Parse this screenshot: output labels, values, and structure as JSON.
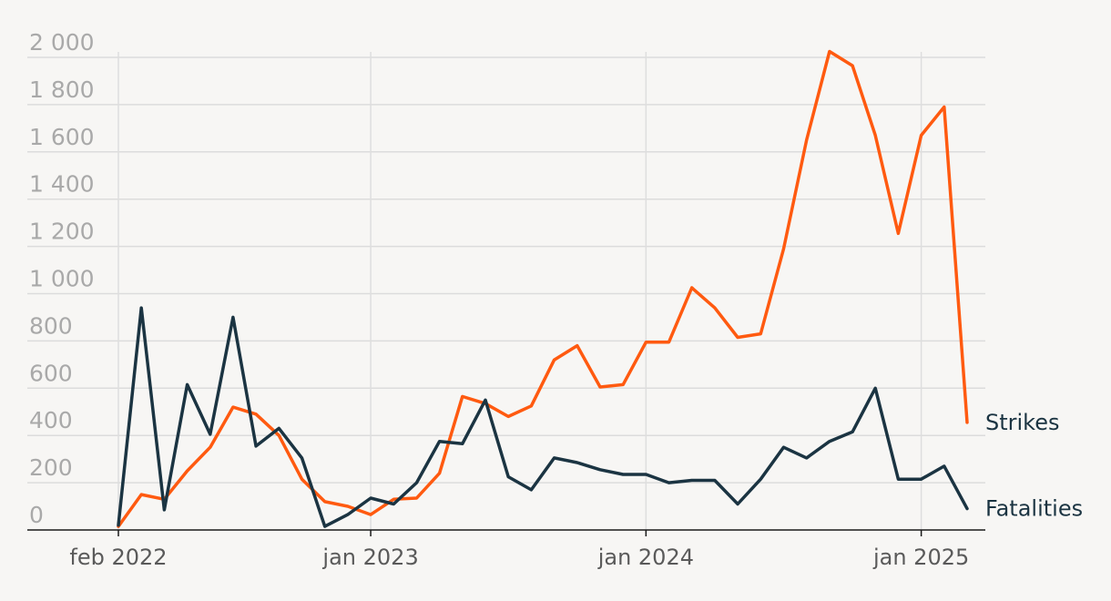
{
  "colors": {
    "background": "#f7f6f4",
    "strikes": "#ff5a10",
    "fatalities": "#1b3442"
  },
  "chart_data": {
    "type": "line",
    "title": "",
    "xlabel": "",
    "ylabel": "",
    "ylim": [
      0,
      2000
    ],
    "yticks": [
      0,
      200,
      400,
      600,
      800,
      1000,
      1200,
      1400,
      1600,
      1800,
      2000
    ],
    "ytick_labels": [
      "0",
      "200",
      "400",
      "600",
      "800",
      "1 000",
      "1 200",
      "1 400",
      "1 600",
      "1 800",
      "2 000"
    ],
    "xticks": [
      {
        "date": "2022-02",
        "label": "feb 2022"
      },
      {
        "date": "2023-01",
        "label": "jan 2023"
      },
      {
        "date": "2024-01",
        "label": "jan 2024"
      },
      {
        "date": "2025-01",
        "label": "jan 2025"
      }
    ],
    "x": [
      "2022-02",
      "2022-03",
      "2022-04",
      "2022-05",
      "2022-06",
      "2022-07",
      "2022-08",
      "2022-09",
      "2022-10",
      "2022-11",
      "2022-12",
      "2023-01",
      "2023-02",
      "2023-03",
      "2023-04",
      "2023-05",
      "2023-06",
      "2023-07",
      "2023-08",
      "2023-09",
      "2023-10",
      "2023-11",
      "2023-12",
      "2024-01",
      "2024-02",
      "2024-03",
      "2024-04",
      "2024-05",
      "2024-06",
      "2024-07",
      "2024-08",
      "2024-09",
      "2024-10",
      "2024-11",
      "2024-12",
      "2025-01",
      "2025-02",
      "2025-03"
    ],
    "grid": true,
    "legend": "inline-right",
    "series": [
      {
        "name": "Strikes",
        "color": "#ff5a10",
        "values": [
          15,
          150,
          130,
          250,
          350,
          520,
          490,
          400,
          215,
          120,
          100,
          65,
          130,
          135,
          240,
          565,
          535,
          480,
          525,
          720,
          780,
          605,
          615,
          795,
          795,
          1025,
          940,
          815,
          830,
          1190,
          1650,
          2025,
          1965,
          1670,
          1255,
          1670,
          1790,
          455
        ]
      },
      {
        "name": "Fatalities",
        "color": "#1b3442",
        "values": [
          20,
          940,
          85,
          615,
          405,
          900,
          355,
          430,
          305,
          15,
          65,
          135,
          110,
          200,
          375,
          365,
          550,
          225,
          170,
          305,
          285,
          255,
          235,
          235,
          200,
          210,
          210,
          110,
          215,
          350,
          305,
          375,
          415,
          600,
          215,
          215,
          270,
          90
        ]
      }
    ]
  }
}
